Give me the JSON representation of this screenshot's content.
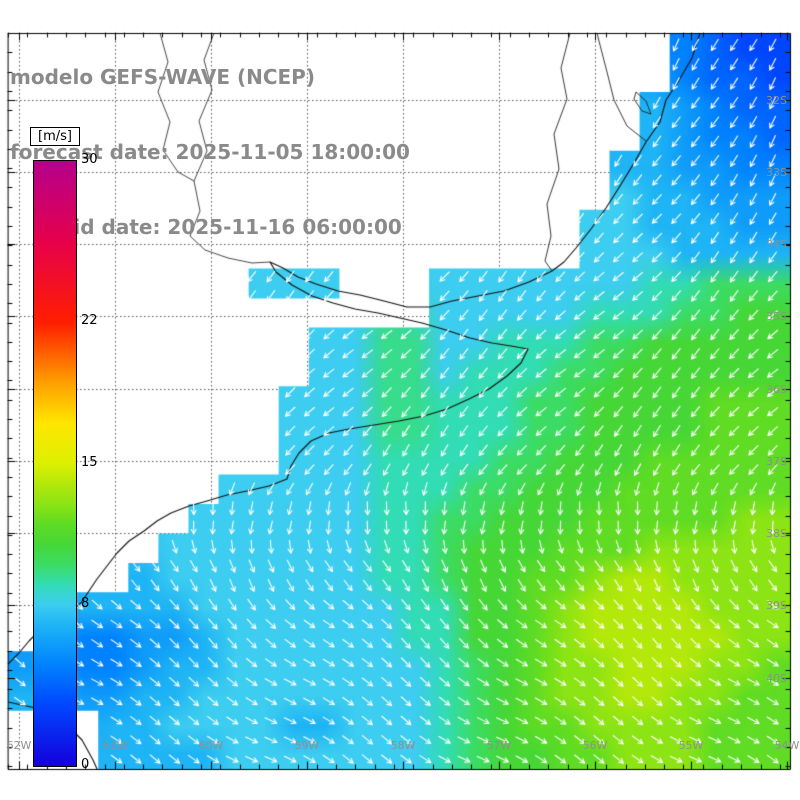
{
  "header": {
    "model_line": "modelo GEFS-WAVE (NCEP)",
    "forecast_line": "forecast date: 2025-11-05 18:00:00",
    "valid_line": "valid date: 2025-11-16 06:00:00"
  },
  "colorbar": {
    "units_label": "[m/s]",
    "min": 0,
    "max": 30,
    "tick_values": [
      30,
      22,
      15,
      8,
      0
    ],
    "gradient_stops": [
      [
        0,
        "#1400DC"
      ],
      [
        3,
        "#0046FF"
      ],
      [
        5,
        "#0082FF"
      ],
      [
        7,
        "#1EB4F5"
      ],
      [
        8,
        "#3CCDF0"
      ],
      [
        9,
        "#32DCB4"
      ],
      [
        10,
        "#3CDC64"
      ],
      [
        11,
        "#46D737"
      ],
      [
        12,
        "#5FDC23"
      ],
      [
        13,
        "#8CE414"
      ],
      [
        14,
        "#B4E80A"
      ],
      [
        15,
        "#DCF000"
      ],
      [
        17,
        "#FFE600"
      ],
      [
        19,
        "#FFA000"
      ],
      [
        22,
        "#FF1E00"
      ],
      [
        26,
        "#E6004B"
      ],
      [
        30,
        "#B4008C"
      ]
    ]
  },
  "map": {
    "lat_labels": [
      "32S",
      "33S",
      "34S",
      "35S",
      "36S",
      "37S",
      "38S",
      "39S",
      "40S"
    ],
    "lon_labels": [
      "62W",
      "61W",
      "60W",
      "59W",
      "58W",
      "57W",
      "56W",
      "55W",
      "54W"
    ]
  },
  "colors": {
    "land": "#ffffff",
    "arrows": "#ffffff",
    "coastline": "#111111",
    "borders": "#222222",
    "rivers": "#333333",
    "grid": "#555555",
    "frame": "#000000",
    "title_text": "#8a8a8a",
    "axis_label_text": "#8f8f8f"
  },
  "chart_data": {
    "type": "heatmap",
    "overlay": "vector-arrows",
    "units": "m/s",
    "value_range": [
      0,
      30
    ],
    "grid_cols": 26,
    "grid_rows": 25,
    "speed_scale": {
      "3": 3,
      "4": 4,
      "5": 5,
      "6": 6,
      "7": 7,
      "8": 8,
      "9": 9,
      "a": 9.5,
      "b": 10,
      "c": 11,
      "d": 12,
      "e": 13,
      "f": 14
    },
    "cells": [
      "......................5433",
      "......................5443",
      ".....................76544",
      ".....................76554",
      "....................776655",
      "....................877666",
      "...................8877766",
      "...................8887777",
      "........888...888888899bbb",
      "..............88888999bbcc",
      "..........88aa88999bbccccc",
      "..........88aa8999bbcccccc",
      ".........888aa999bbccccddd",
      ".........888aa999bbccccddd",
      ".........8889999bbcccddddd",
      ".......88888999bbcccdddddd",
      "......88888899bbcccdddddee",
      ".....888888899bcccdddeeeee",
      "....7888888899bccddeffeeee",
      "..7777888888899ccdeffffeee",
      ".65566788888899ccdefffffee",
      "665567788888889bcdeefffeed",
      "776677888888889bcdeeffeedd",
      "...778888778889bcddeeeeddd",
      "...777788888889bccddeeeddd"
    ],
    "arrow_angles_by_row": [
      115,
      115,
      118,
      120,
      122,
      125,
      128,
      130,
      133,
      135,
      135,
      135,
      133,
      130,
      126,
      112,
      95,
      78,
      60,
      48,
      42,
      38,
      35,
      33,
      32
    ],
    "arrow_jitter_deg": 8,
    "geo": {
      "coastlines": [
        [
          [
            700,
            33
          ],
          [
            692,
            58
          ],
          [
            678,
            82
          ],
          [
            666,
            100
          ],
          [
            660,
            122
          ],
          [
            646,
            142
          ],
          [
            634,
            163
          ],
          [
            620,
            186
          ],
          [
            606,
            208
          ],
          [
            591,
            229
          ],
          [
            576,
            248
          ],
          [
            564,
            262
          ],
          [
            552,
            271
          ],
          [
            529,
            282
          ],
          [
            504,
            291
          ],
          [
            478,
            296
          ],
          [
            452,
            301
          ],
          [
            430,
            307
          ],
          [
            407,
            307
          ],
          [
            384,
            301
          ],
          [
            360,
            295
          ],
          [
            338,
            291
          ],
          [
            316,
            284
          ],
          [
            298,
            277
          ],
          [
            283,
            268
          ],
          [
            270,
            262
          ],
          [
            276,
            272
          ],
          [
            292,
            285
          ],
          [
            312,
            296
          ],
          [
            333,
            303
          ],
          [
            355,
            309
          ],
          [
            378,
            313
          ],
          [
            400,
            318
          ],
          [
            422,
            323
          ],
          [
            446,
            330
          ],
          [
            470,
            338
          ],
          [
            492,
            343
          ],
          [
            511,
            346
          ],
          [
            528,
            349
          ],
          [
            521,
            363
          ],
          [
            507,
            376
          ],
          [
            489,
            389
          ],
          [
            469,
            399
          ],
          [
            447,
            409
          ],
          [
            424,
            416
          ],
          [
            399,
            421
          ],
          [
            374,
            425
          ],
          [
            349,
            429
          ],
          [
            329,
            433
          ],
          [
            311,
            441
          ],
          [
            299,
            453
          ],
          [
            291,
            466
          ],
          [
            287,
            479
          ],
          [
            269,
            486
          ],
          [
            247,
            491
          ],
          [
            227,
            495
          ],
          [
            207,
            501
          ],
          [
            189,
            506
          ],
          [
            171,
            513
          ],
          [
            157,
            521
          ],
          [
            144,
            531
          ],
          [
            129,
            541
          ],
          [
            117,
            553
          ],
          [
            107,
            566
          ],
          [
            97,
            579
          ],
          [
            89,
            591
          ],
          [
            81,
            603
          ],
          [
            69,
            611
          ],
          [
            54,
            619
          ],
          [
            41,
            629
          ],
          [
            29,
            641
          ],
          [
            19,
            653
          ],
          [
            8,
            664
          ]
        ],
        [
          [
            8,
            702
          ],
          [
            36,
            708
          ],
          [
            62,
            720
          ],
          [
            82,
            740
          ],
          [
            93,
            760
          ],
          [
            97,
            769
          ]
        ]
      ],
      "borders": [
        [
          [
            597,
            33
          ],
          [
            600,
            45
          ],
          [
            607,
            72
          ],
          [
            614,
            100
          ],
          [
            627,
            126
          ],
          [
            646,
            141
          ]
        ],
        [
          [
            570,
            33
          ],
          [
            561,
            68
          ],
          [
            567,
            99
          ],
          [
            554,
            134
          ],
          [
            559,
            169
          ],
          [
            547,
            204
          ],
          [
            551,
            236
          ],
          [
            545,
            261
          ],
          [
            552,
            271
          ]
        ]
      ],
      "rivers": [
        [
          [
            214,
            33
          ],
          [
            204,
            60
          ],
          [
            212,
            90
          ],
          [
            199,
            121
          ],
          [
            207,
            151
          ],
          [
            194,
            181
          ],
          [
            200,
            211
          ],
          [
            190,
            236
          ],
          [
            205,
            250
          ],
          [
            228,
            258
          ],
          [
            252,
            263
          ],
          [
            270,
            262
          ]
        ],
        [
          [
            160,
            33
          ],
          [
            168,
            62
          ],
          [
            158,
            92
          ],
          [
            170,
            122
          ],
          [
            163,
            150
          ],
          [
            178,
            172
          ],
          [
            194,
            181
          ]
        ]
      ],
      "lakes": [
        [
          [
            636,
            92
          ],
          [
            646,
            101
          ],
          [
            651,
            114
          ],
          [
            642,
            111
          ],
          [
            634,
            99
          ],
          [
            636,
            92
          ]
        ]
      ]
    }
  }
}
